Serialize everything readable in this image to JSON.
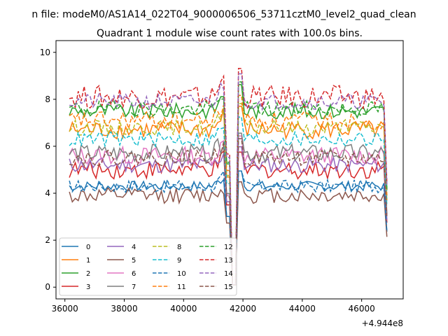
{
  "figure": {
    "suptitle": "n file: modeM0/AS1A14_022T04_9000006506_53711cztM0_level2_quad_clean",
    "title": "Quadrant 1 module wise count rates with 100.0s bins.",
    "x_offset_label": "+4.944e8"
  },
  "chart_data": {
    "type": "line",
    "title": "Quadrant 1 module wise count rates with 100.0s bins.",
    "xlabel": "",
    "ylabel": "",
    "x_offset": 494400000,
    "xlim": [
      35700,
      47400
    ],
    "ylim": [
      -0.5,
      10.5
    ],
    "xticks": [
      36000,
      38000,
      40000,
      42000,
      44000,
      46000
    ],
    "yticks": [
      0,
      2,
      4,
      6,
      8,
      10
    ],
    "x_start": 36150,
    "x_step": 100,
    "gap_start": 41450,
    "gap_end": 41950,
    "end_drop": [
      46800,
      46900
    ],
    "grid": false,
    "legend_position": "lower-left",
    "legend_columns": 4,
    "series": [
      {
        "name": "0",
        "level": 4.3,
        "amp": 0.2,
        "style": "solid",
        "color": "#1f77b4"
      },
      {
        "name": "1",
        "level": 6.7,
        "amp": 0.35,
        "style": "solid",
        "color": "#ff7f0e"
      },
      {
        "name": "2",
        "level": 7.5,
        "amp": 0.3,
        "style": "solid",
        "color": "#2ca02c"
      },
      {
        "name": "3",
        "level": 5.0,
        "amp": 0.35,
        "style": "solid",
        "color": "#d62728"
      },
      {
        "name": "4",
        "level": 5.2,
        "amp": 0.3,
        "style": "solid",
        "color": "#9467bd"
      },
      {
        "name": "5",
        "level": 3.9,
        "amp": 0.3,
        "style": "solid",
        "color": "#8c564b"
      },
      {
        "name": "6",
        "level": 5.6,
        "amp": 0.35,
        "style": "solid",
        "color": "#e377c2"
      },
      {
        "name": "7",
        "level": 5.7,
        "amp": 0.35,
        "style": "solid",
        "color": "#7f7f7f"
      },
      {
        "name": "8",
        "level": 6.8,
        "amp": 0.3,
        "style": "dashed",
        "color": "#bcbd22"
      },
      {
        "name": "9",
        "level": 6.3,
        "amp": 0.3,
        "style": "dashed",
        "color": "#17becf"
      },
      {
        "name": "10",
        "level": 4.3,
        "amp": 0.25,
        "style": "dashed",
        "color": "#1f77b4"
      },
      {
        "name": "11",
        "level": 7.1,
        "amp": 0.35,
        "style": "dashed",
        "color": "#ff7f0e"
      },
      {
        "name": "12",
        "level": 7.6,
        "amp": 0.3,
        "style": "dashed",
        "color": "#2ca02c"
      },
      {
        "name": "13",
        "level": 8.1,
        "amp": 0.45,
        "style": "dashed",
        "color": "#d62728"
      },
      {
        "name": "14",
        "level": 7.9,
        "amp": 0.3,
        "style": "dashed",
        "color": "#9467bd"
      },
      {
        "name": "15",
        "level": 5.5,
        "amp": 0.3,
        "style": "dashed",
        "color": "#8c564b"
      }
    ]
  }
}
